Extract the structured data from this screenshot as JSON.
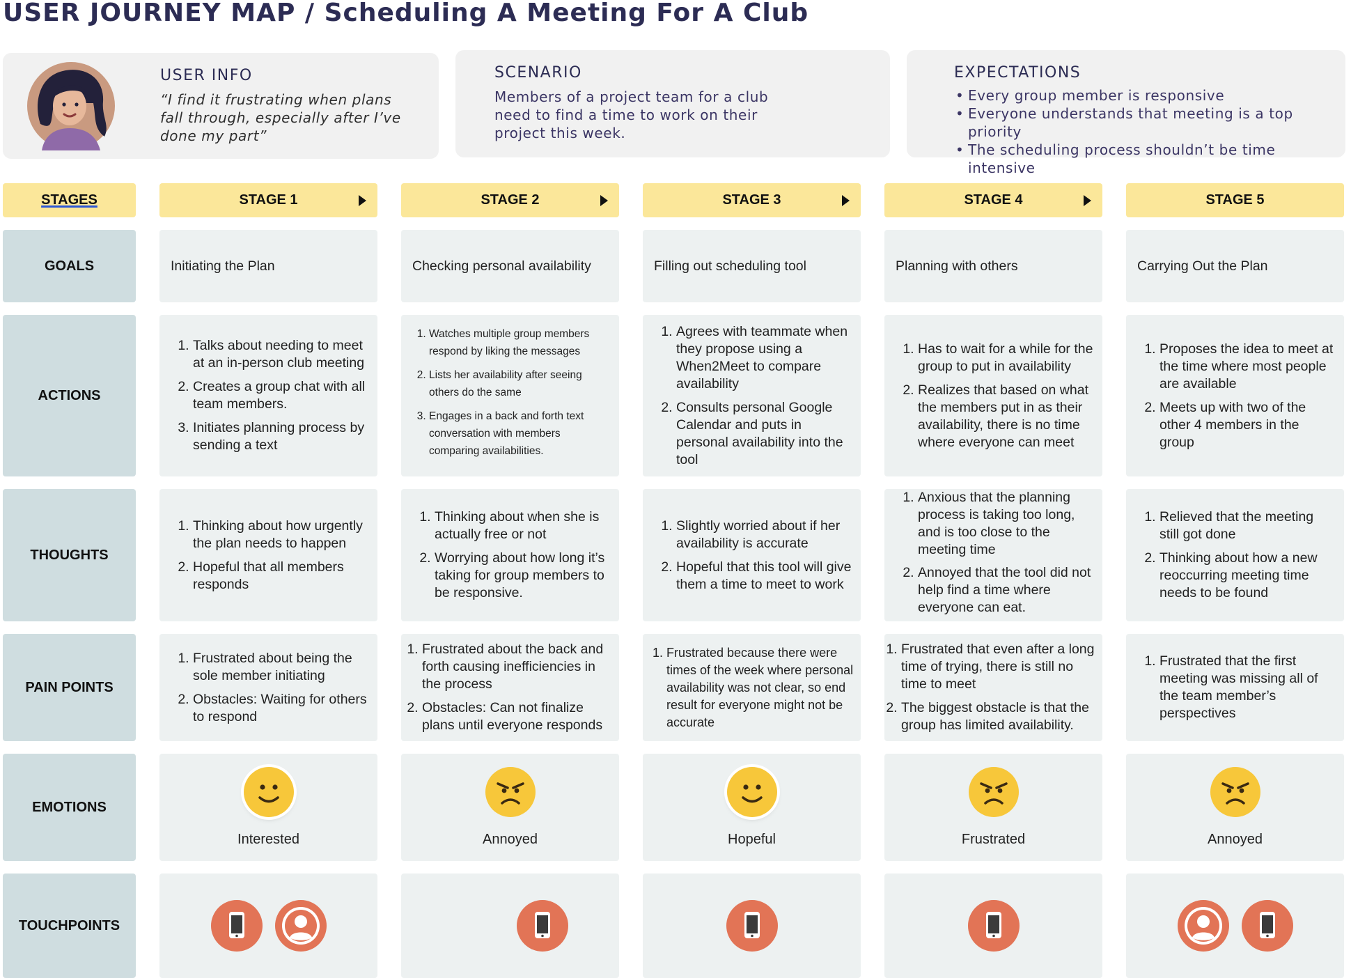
{
  "title": "USER JOURNEY MAP / Scheduling A Meeting For A Club",
  "user_info": {
    "heading": "USER INFO",
    "quote": "“I find it frustrating when plans fall through, especially after I’ve done my part”"
  },
  "scenario": {
    "heading": "SCENARIO",
    "text": "Members of a project team for a club need to find a time to work on their project this week."
  },
  "expectations": {
    "heading": "EXPECTATIONS",
    "items": [
      "Every group member is responsive",
      "Everyone understands that meeting is a top priority",
      "The scheduling process shouldn’t be time intensive"
    ]
  },
  "row_labels": {
    "stages": "STAGES",
    "goals": "GOALS",
    "actions": "ACTIONS",
    "thoughts": "THOUGHTS",
    "pain_points": "PAIN POINTS",
    "emotions": "EMOTIONS",
    "touchpoints": "TOUCHPOINTS"
  },
  "stages": [
    {
      "label": "STAGE 1",
      "goal": "Initiating the Plan",
      "actions": [
        "Talks about needing to meet at an in-person club meeting",
        "Creates a group chat with all team members.",
        "Initiates planning process by sending a text"
      ],
      "thoughts": [
        "Thinking about how urgently the plan needs to happen",
        "Hopeful that all members responds"
      ],
      "pain_points": [
        "Frustrated about being the sole member initiating",
        "Obstacles: Waiting for others to respond"
      ],
      "emotion": "Interested",
      "emotion_type": "happy",
      "touchpoints": [
        "phone-icon",
        "person-icon"
      ]
    },
    {
      "label": "STAGE 2",
      "goal": "Checking personal availability",
      "actions": [
        "Watches multiple group members respond by liking the messages",
        "Lists her availability after seeing others do the same",
        "Engages in a back and forth text conversation with members comparing availabilities."
      ],
      "thoughts": [
        "Thinking about when she is actually free or not",
        "Worrying about how long it’s taking for group members to be responsive."
      ],
      "pain_points": [
        "Frustrated about the back and forth causing inefficiencies in the process",
        "Obstacles: Can not finalize plans until everyone responds"
      ],
      "emotion": "Annoyed",
      "emotion_type": "angry",
      "touchpoints": [
        "phone-icon"
      ]
    },
    {
      "label": "STAGE 3",
      "goal": "Filling out scheduling tool",
      "actions": [
        "Agrees with teammate when they propose using a When2Meet to compare availability",
        "Consults personal Google Calendar and puts in personal availability into the tool"
      ],
      "thoughts": [
        "Slightly worried about if her availability is accurate",
        "Hopeful that this tool will give them a time to meet to work"
      ],
      "pain_points": [
        "Frustrated because there were times of the week where personal availability was not clear, so end result for everyone might not be accurate"
      ],
      "emotion": "Hopeful",
      "emotion_type": "happy",
      "touchpoints": [
        "phone-icon"
      ]
    },
    {
      "label": "STAGE 4",
      "goal": "Planning with others",
      "actions": [
        "Has to wait for a while for the group to put in availability",
        "Realizes that based on what the members put in as their availability, there is no time where everyone can meet"
      ],
      "thoughts": [
        "Anxious that the planning process is taking too long, and is too close to the meeting time",
        "Annoyed that the tool did not help find a time where everyone can eat."
      ],
      "pain_points": [
        "Frustrated that even after a long time of trying, there is still no time to meet",
        "The biggest obstacle is that the group has limited availability."
      ],
      "emotion": "Frustrated",
      "emotion_type": "angry",
      "touchpoints": [
        "phone-icon"
      ]
    },
    {
      "label": "STAGE 5",
      "goal": "Carrying Out the Plan",
      "actions": [
        "Proposes the idea to meet at the time where most people are available",
        "Meets up with two of the other 4 members in the group"
      ],
      "thoughts": [
        "Relieved that the meeting still got done",
        "Thinking about how a new reoccurring meeting time needs to be found"
      ],
      "pain_points": [
        "Frustrated that the first meeting was missing all of the team member’s perspectives"
      ],
      "emotion": "Annoyed",
      "emotion_type": "angry",
      "touchpoints": [
        "person-icon",
        "phone-icon"
      ]
    }
  ],
  "colors": {
    "stage_header": "#fbe79a",
    "row_label": "#cfdde0",
    "cell": "#edf1f1",
    "touchpoint": "#e27456",
    "emoji": "#f7c73a"
  }
}
